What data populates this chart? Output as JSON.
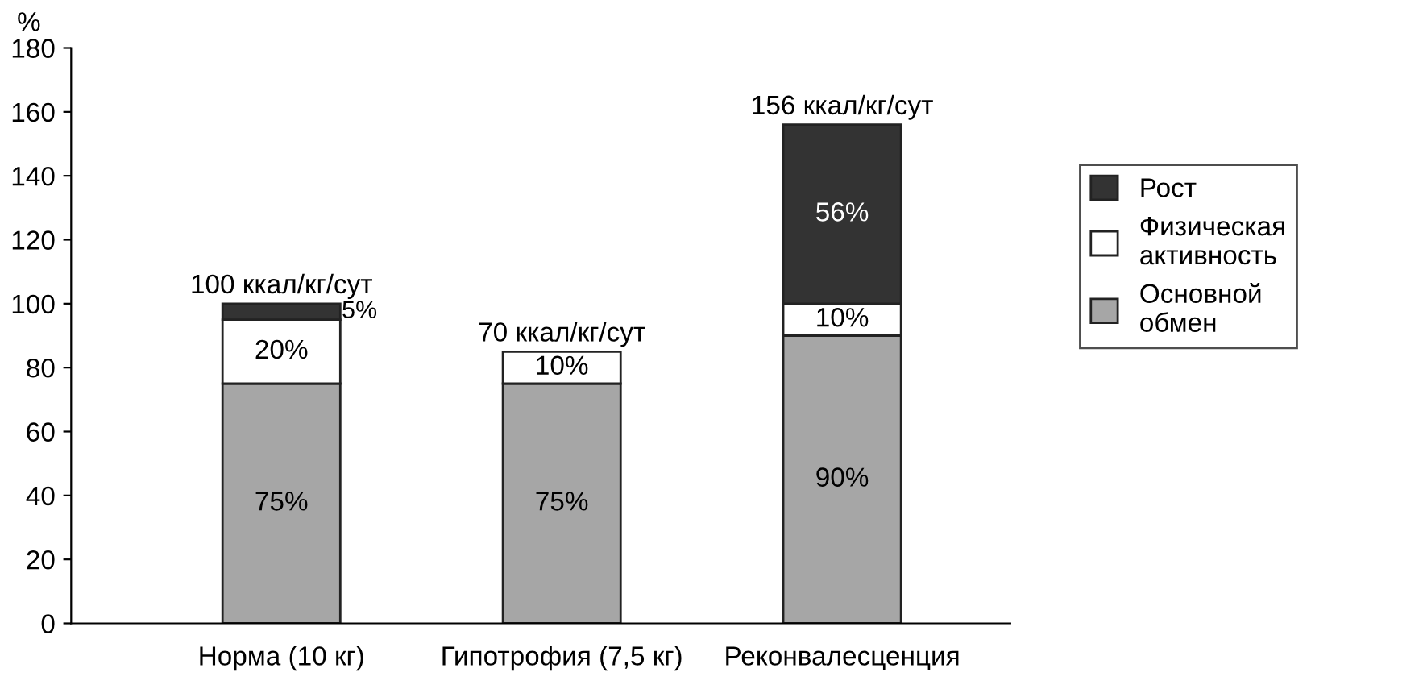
{
  "chart_data": {
    "type": "bar",
    "stacked": true,
    "ylabel": "%",
    "categories": [
      "Норма (10 кг)",
      "Гипотрофия (7,5 кг)",
      "Реконвалесценция"
    ],
    "series": [
      {
        "name": "Основной\nобмен",
        "color": "#a6a6a6",
        "values": [
          75,
          75,
          90
        ],
        "value_labels": [
          "75%",
          "75%",
          "90%"
        ]
      },
      {
        "name": "Физическая\nактивность",
        "color": "#ffffff",
        "values": [
          20,
          10,
          10
        ],
        "value_labels": [
          "20%",
          "10%",
          "10%"
        ]
      },
      {
        "name": "Рост",
        "color": "#333333",
        "values": [
          5,
          null,
          56
        ],
        "value_labels": [
          "5%",
          null,
          "56%"
        ]
      }
    ],
    "annotations": [
      {
        "text": "100 ккал/кг/сут",
        "x": "Норма (10 кг)",
        "y": 100
      },
      {
        "text": "70 ккал/кг/сут",
        "x": "Гипотрофия (7,5 кг)",
        "y": 85
      },
      {
        "text": "156 ккал/кг/сут",
        "x": "Реконвалесценция",
        "y": 156
      }
    ],
    "ylim": [
      0,
      180
    ],
    "yticks": [
      0,
      20,
      40,
      60,
      80,
      100,
      120,
      140,
      160,
      180
    ],
    "grid": false,
    "legend": "right"
  }
}
